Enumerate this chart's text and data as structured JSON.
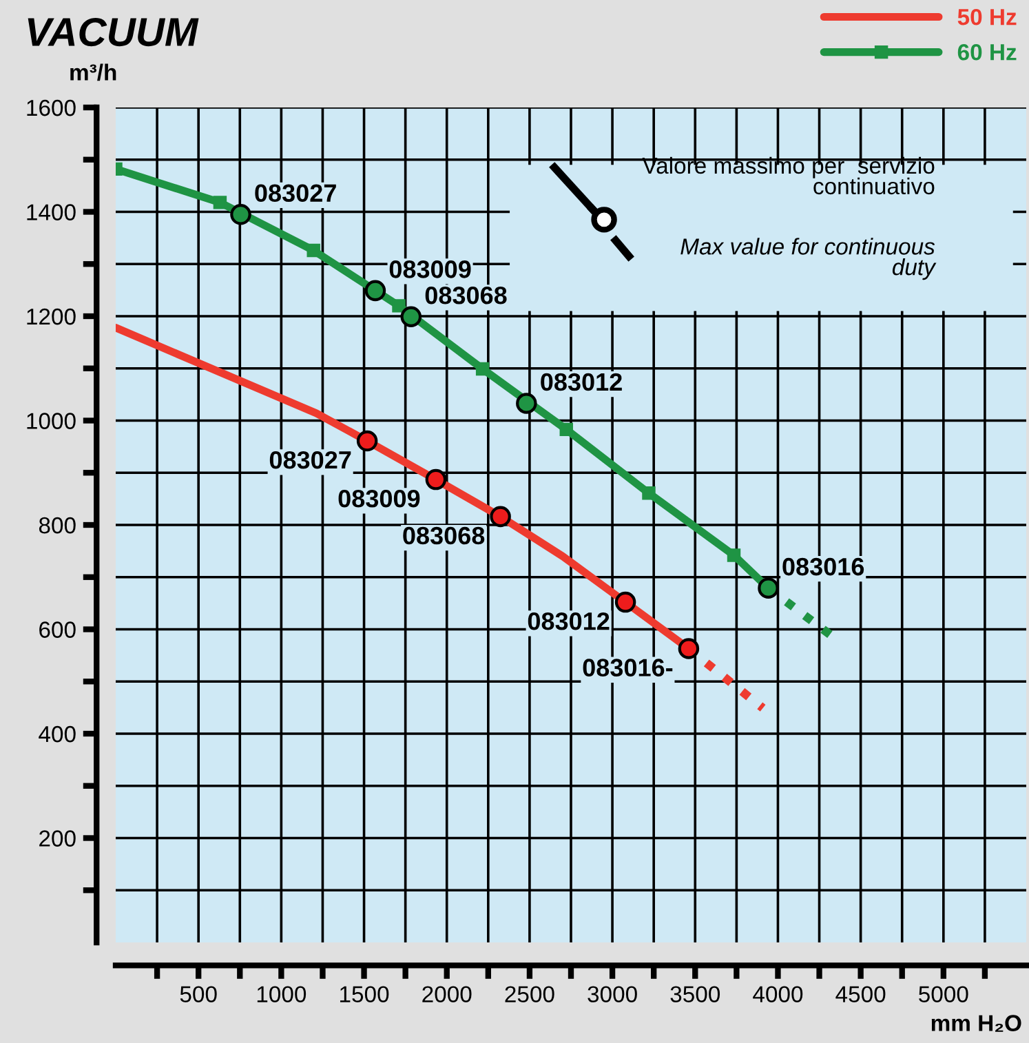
{
  "chart_data": {
    "type": "line",
    "title": "VACUUM",
    "xlabel": "mm H₂O",
    "ylabel": "m³/h",
    "xlim": [
      0,
      5500
    ],
    "ylim": [
      0,
      1600
    ],
    "xticks": [
      {
        "value": 250,
        "label": null
      },
      500,
      {
        "value": 750,
        "label": null
      },
      1000,
      {
        "value": 1250,
        "label": null
      },
      1500,
      {
        "value": 1750,
        "label": null
      },
      2000,
      {
        "value": 2250,
        "label": null
      },
      2500,
      {
        "value": 2750,
        "label": null
      },
      3000,
      {
        "value": 3250,
        "label": null
      },
      3500,
      {
        "value": 3750,
        "label": null
      },
      4000,
      {
        "value": 4250,
        "label": null
      },
      4500,
      {
        "value": 4750,
        "label": null
      },
      5000,
      {
        "value": 5250,
        "label": null
      }
    ],
    "yticks": [
      {
        "value": 100,
        "label": null
      },
      200,
      {
        "value": 300,
        "label": null
      },
      400,
      {
        "value": 500,
        "label": null
      },
      600,
      {
        "value": 700,
        "label": null
      },
      800,
      {
        "value": 900,
        "label": null
      },
      1000,
      {
        "value": 1100,
        "label": null
      },
      1200,
      {
        "value": 1300,
        "label": null
      },
      1400,
      {
        "value": 1500,
        "label": null
      },
      1600
    ],
    "grid": true,
    "legend": "top right",
    "series": [
      {
        "name": "50 Hz",
        "color": "#ee3b2f",
        "type": "line",
        "line_style": "solid",
        "marker": "none",
        "x": [
          0,
          1212,
          1519,
          1934,
          2324,
          2700,
          3079,
          3461
        ],
        "values": [
          1178,
          1014,
          961,
          887,
          816,
          740,
          652,
          563
        ]
      },
      {
        "color": "#ee3b2f",
        "type": "line",
        "line_style": "dotted",
        "marker": "none",
        "x": [
          3461,
          3909
        ],
        "values": [
          563,
          449
        ]
      },
      {
        "color": "#ee1c1c",
        "type": "scatter",
        "marker": "circle",
        "x": [
          1519,
          1934,
          2324,
          3079,
          3461
        ],
        "values": [
          961,
          887,
          816,
          652,
          563
        ]
      },
      {
        "name": "60 Hz",
        "color": "#1f9444",
        "type": "line",
        "line_style": "solid",
        "marker": "square",
        "x": [
          0,
          630,
          1195,
          1710,
          2216,
          2722,
          3220,
          3734,
          3942
        ],
        "values": [
          1482,
          1418,
          1326,
          1220,
          1099,
          983,
          861,
          742,
          679
        ]
      },
      {
        "color": "#1f9444",
        "type": "line",
        "line_style": "dotted",
        "marker": "none",
        "x": [
          3942,
          4340
        ],
        "values": [
          679,
          584
        ]
      },
      {
        "color": "#1f9444",
        "type": "scatter",
        "marker": "circle",
        "x": [
          755,
          1568,
          1784,
          2481,
          3942
        ],
        "values": [
          1395,
          1249,
          1199,
          1033,
          679
        ]
      }
    ],
    "annotations": [
      {
        "text": "083027",
        "x": 1519,
        "y": 961
      },
      {
        "text": "083009",
        "x": 1934,
        "y": 887
      },
      {
        "text": "083068",
        "x": 2324,
        "y": 816
      },
      {
        "text": "083012",
        "x": 3079,
        "y": 652
      },
      {
        "text": "083016-",
        "x": 3461,
        "y": 563
      },
      {
        "text": "083027",
        "x": 755,
        "y": 1395
      },
      {
        "text": "083009",
        "x": 1568,
        "y": 1249
      },
      {
        "text": "083068",
        "x": 1784,
        "y": 1199
      },
      {
        "text": "083012",
        "x": 2481,
        "y": 1033
      },
      {
        "text": "083016",
        "x": 3942,
        "y": 679
      },
      "Valore massimo per  servizio\ncontinuativo",
      "Max value for continuous\nduty"
    ]
  }
}
